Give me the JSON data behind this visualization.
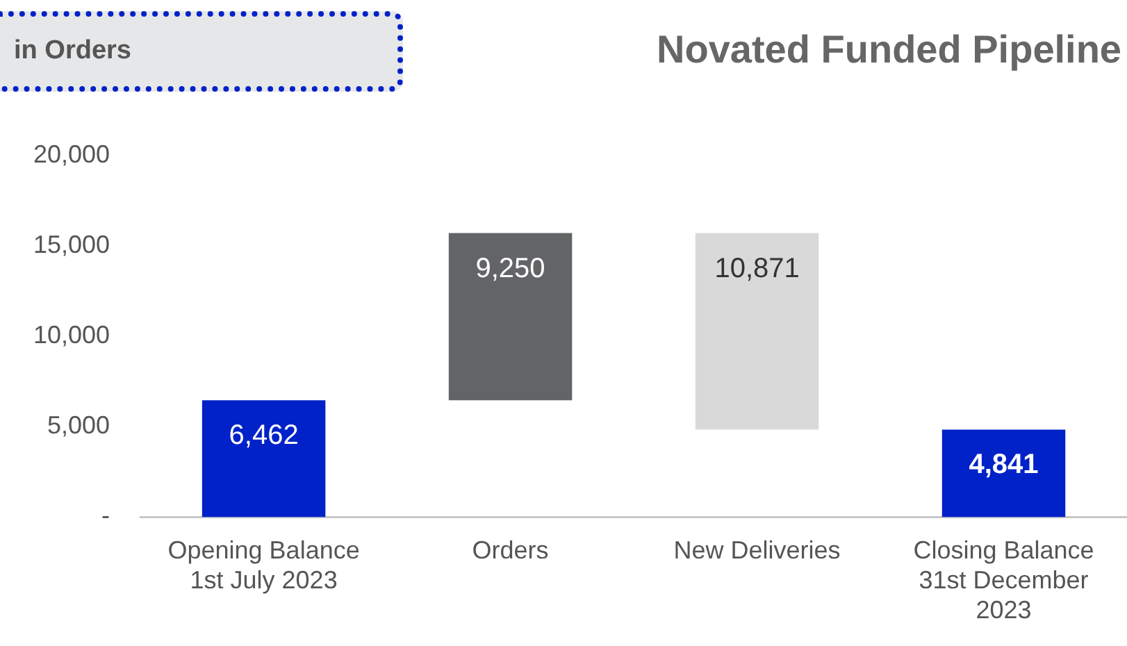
{
  "chart_data": {
    "type": "bar",
    "title": "Novated Funded Pipeline",
    "annotations": [
      "in Orders"
    ],
    "categories": [
      "Opening Balance 1st July 2023",
      "Orders",
      "New Deliveries",
      "Closing Balance 31st December 2023"
    ],
    "values": [
      6462,
      9250,
      -10871,
      4841
    ],
    "base": [
      0,
      6462,
      15712,
      0
    ],
    "colors": [
      "#0022c8",
      "#636466",
      "#d9d9d9",
      "#0022c8"
    ],
    "value_labels": [
      "6,462",
      "9,250",
      "10,871",
      "4,841"
    ],
    "ylim": [
      0,
      20000
    ],
    "yticks": [
      {
        "value": 0,
        "label": "-"
      },
      {
        "value": 5000,
        "label": "5,000"
      },
      {
        "value": 10000,
        "label": "10,000"
      },
      {
        "value": 15000,
        "label": "15,000"
      },
      {
        "value": 20000,
        "label": "20,000"
      }
    ],
    "grid": false,
    "legend": false
  }
}
